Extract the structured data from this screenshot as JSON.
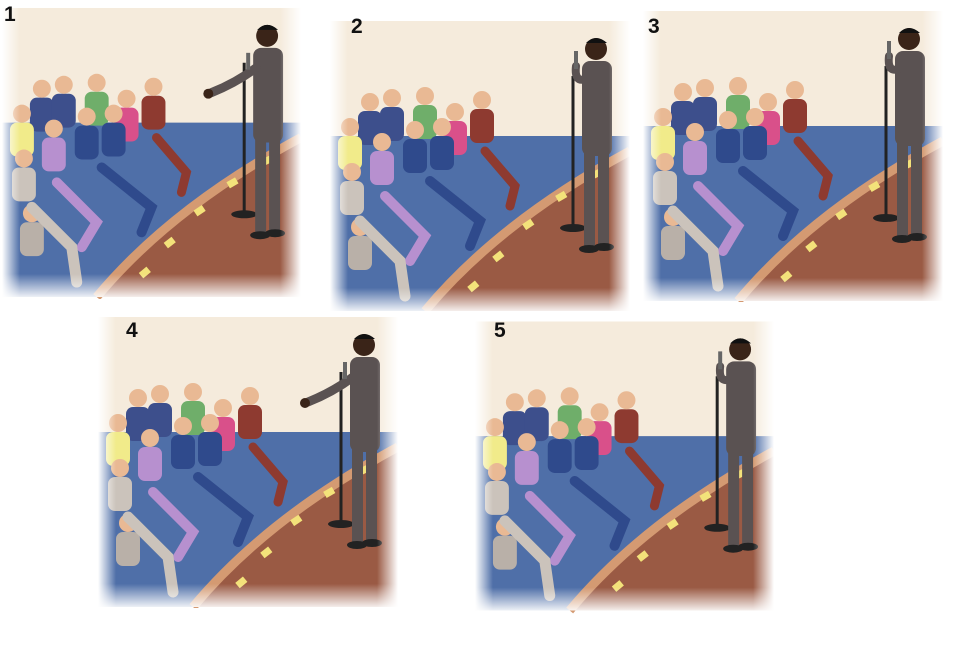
{
  "panels": [
    {
      "number": "1",
      "speaker_pose": "gesturing-open-hand"
    },
    {
      "number": "2",
      "speaker_pose": "holding-microphone"
    },
    {
      "number": "3",
      "speaker_pose": "holding-microphone"
    },
    {
      "number": "4",
      "speaker_pose": "gesturing-open-hand"
    },
    {
      "number": "5",
      "speaker_pose": "holding-microphone"
    }
  ],
  "colors": {
    "wall": "#f5ebdc",
    "floor": "#4f6fa8",
    "stage": "#9a5a44",
    "stage_edge": "#d49a72",
    "stage_light": "#f3e27a",
    "suit": "#5a5252",
    "skin_dark": "#3a2418"
  }
}
